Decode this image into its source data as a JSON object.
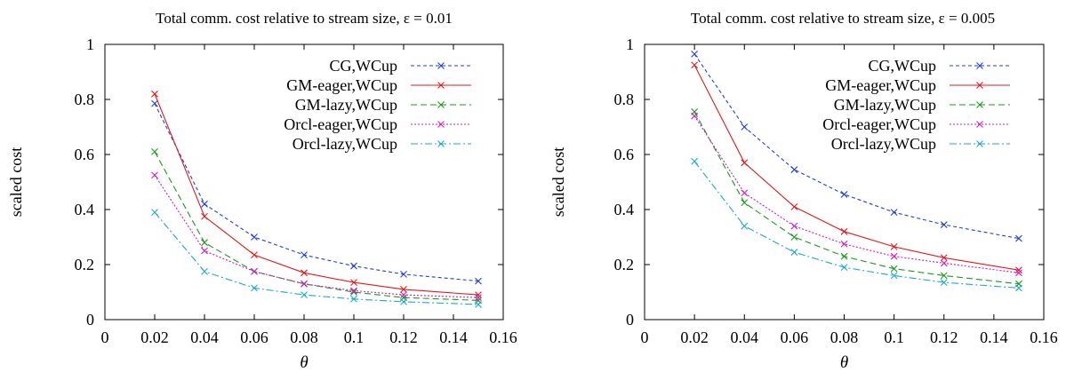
{
  "chart_data": [
    {
      "type": "line",
      "title": "Total comm. cost relative to stream size, ε = 0.01",
      "xlabel": "θ",
      "ylabel": "scaled cost",
      "xlim": [
        0,
        0.16
      ],
      "ylim": [
        0,
        1
      ],
      "xticks": [
        "0",
        "0.02",
        "0.04",
        "0.06",
        "0.08",
        "0.1",
        "0.12",
        "0.14",
        "0.16"
      ],
      "yticks": [
        "0",
        "0.2",
        "0.4",
        "0.6",
        "0.8",
        "1"
      ],
      "legend_position": "top-right",
      "grid": false,
      "x": [
        0.02,
        0.04,
        0.06,
        0.08,
        0.1,
        0.12,
        0.15
      ],
      "series": [
        {
          "name": "CG,WCup",
          "color": "#1f3fe0",
          "dash": "4,3",
          "values": [
            0.785,
            0.42,
            0.3,
            0.235,
            0.195,
            0.165,
            0.14
          ]
        },
        {
          "name": "GM-eager,WCup",
          "color": "#e41a1c",
          "dash": "",
          "values": [
            0.82,
            0.375,
            0.235,
            0.17,
            0.135,
            0.11,
            0.09
          ]
        },
        {
          "name": "GM-lazy,WCup",
          "color": "#1a9a1a",
          "dash": "7,4",
          "values": [
            0.61,
            0.28,
            0.175,
            0.13,
            0.1,
            0.08,
            0.07
          ]
        },
        {
          "name": "Orcl-eager,WCup",
          "color": "#d11ac8",
          "dash": "2,2",
          "values": [
            0.525,
            0.25,
            0.175,
            0.13,
            0.105,
            0.09,
            0.08
          ]
        },
        {
          "name": "Orcl-lazy,WCup",
          "color": "#1aa9d6",
          "dash": "8,3,2,3",
          "values": [
            0.39,
            0.175,
            0.115,
            0.09,
            0.075,
            0.065,
            0.055
          ]
        }
      ]
    },
    {
      "type": "line",
      "title": "Total comm. cost relative to stream size, ε = 0.005",
      "xlabel": "θ",
      "ylabel": "scaled cost",
      "xlim": [
        0,
        0.16
      ],
      "ylim": [
        0,
        1
      ],
      "xticks": [
        "0",
        "0.02",
        "0.04",
        "0.06",
        "0.08",
        "0.1",
        "0.12",
        "0.14",
        "0.16"
      ],
      "yticks": [
        "0",
        "0.2",
        "0.4",
        "0.6",
        "0.8",
        "1"
      ],
      "legend_position": "top-right",
      "grid": false,
      "x": [
        0.02,
        0.04,
        0.06,
        0.08,
        0.1,
        0.12,
        0.15
      ],
      "series": [
        {
          "name": "CG,WCup",
          "color": "#1f3fe0",
          "dash": "4,3",
          "values": [
            0.965,
            0.7,
            0.545,
            0.455,
            0.39,
            0.345,
            0.295
          ]
        },
        {
          "name": "GM-eager,WCup",
          "color": "#e41a1c",
          "dash": "",
          "values": [
            0.925,
            0.57,
            0.41,
            0.32,
            0.265,
            0.225,
            0.18
          ]
        },
        {
          "name": "GM-lazy,WCup",
          "color": "#1a9a1a",
          "dash": "7,4",
          "values": [
            0.755,
            0.425,
            0.3,
            0.23,
            0.185,
            0.16,
            0.13
          ]
        },
        {
          "name": "Orcl-eager,WCup",
          "color": "#d11ac8",
          "dash": "2,2",
          "values": [
            0.74,
            0.46,
            0.34,
            0.275,
            0.23,
            0.205,
            0.17
          ]
        },
        {
          "name": "Orcl-lazy,WCup",
          "color": "#1aa9d6",
          "dash": "8,3,2,3",
          "values": [
            0.575,
            0.34,
            0.245,
            0.19,
            0.16,
            0.135,
            0.115
          ]
        }
      ]
    }
  ]
}
